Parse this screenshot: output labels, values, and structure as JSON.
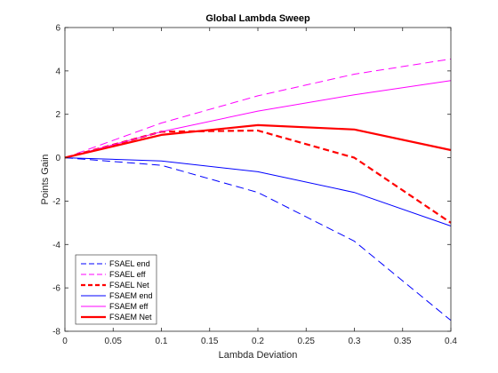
{
  "chart_data": {
    "type": "line",
    "title": "Global Lambda Sweep",
    "xlabel": "Lambda Deviation",
    "ylabel": "Points Gain",
    "xlim": [
      0,
      0.4
    ],
    "ylim": [
      -8,
      6
    ],
    "x_ticks": [
      0,
      0.05,
      0.1,
      0.15,
      0.2,
      0.25,
      0.3,
      0.35,
      0.4
    ],
    "x_tick_labels": [
      "0",
      "0.05",
      "0.1",
      "0.15",
      "0.2",
      "0.25",
      "0.3",
      "0.35",
      "0.4"
    ],
    "y_ticks": [
      -8,
      -6,
      -4,
      -2,
      0,
      2,
      4,
      6
    ],
    "y_tick_labels": [
      "-8",
      "-6",
      "-4",
      "-2",
      "0",
      "2",
      "4",
      "6"
    ],
    "grid": false,
    "legend_position": "bottom-left",
    "x": [
      0,
      0.1,
      0.2,
      0.3,
      0.4
    ],
    "series": [
      {
        "name": "FSAEL end",
        "color": "#0000ff",
        "style": "dashed",
        "width": "thin",
        "values": [
          0,
          -0.35,
          -1.6,
          -3.85,
          -7.5
        ]
      },
      {
        "name": "FSAEL eff",
        "color": "#ff00ff",
        "style": "dashed",
        "width": "thin",
        "values": [
          0,
          1.6,
          2.85,
          3.85,
          4.55
        ]
      },
      {
        "name": "FSAEL Net",
        "color": "#ff0000",
        "style": "dashed",
        "width": "thick",
        "values": [
          0,
          1.2,
          1.25,
          0,
          -3.0
        ]
      },
      {
        "name": "FSAEM end",
        "color": "#0000ff",
        "style": "solid",
        "width": "thin",
        "values": [
          0,
          -0.15,
          -0.65,
          -1.6,
          -3.15
        ]
      },
      {
        "name": "FSAEM eff",
        "color": "#ff00ff",
        "style": "solid",
        "width": "thin",
        "values": [
          0,
          1.2,
          2.15,
          2.9,
          3.55
        ]
      },
      {
        "name": "FSAEM Net",
        "color": "#ff0000",
        "style": "solid",
        "width": "thick",
        "values": [
          0,
          1.05,
          1.5,
          1.3,
          0.35
        ]
      }
    ]
  }
}
